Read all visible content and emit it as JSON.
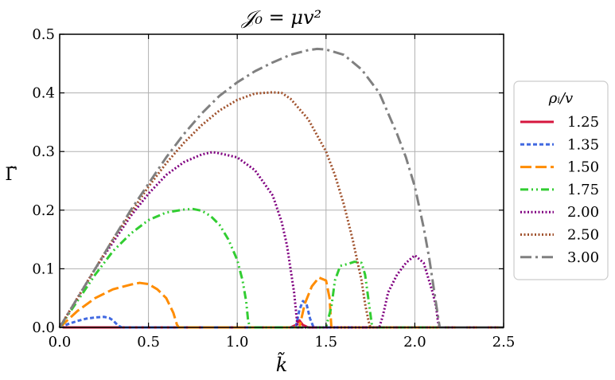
{
  "chart_data": {
    "type": "line",
    "title": "𝒥₀ = μv²",
    "xlabel": "k̃",
    "ylabel": "Γ̃",
    "xlim": [
      0,
      2.5
    ],
    "ylim": [
      0,
      0.5
    ],
    "xticks": [
      "0.0",
      "0.5",
      "1.0",
      "1.5",
      "2.0",
      "2.5"
    ],
    "yticks": [
      "0.0",
      "0.1",
      "0.2",
      "0.3",
      "0.4",
      "0.5"
    ],
    "grid": true,
    "legend_title": "ρᵢ/v",
    "legend_position": "right",
    "series": [
      {
        "name": "1.25",
        "color": "#d6163e",
        "dash": "solid",
        "x": [
          0,
          0.01,
          0.02,
          0.5,
          1.0,
          1.3,
          1.33,
          1.35,
          1.37,
          1.4,
          1.5,
          2.0,
          2.5
        ],
        "y": [
          0,
          0.006,
          0.0,
          0.0,
          0.0,
          0.0,
          0.004,
          0.012,
          0.004,
          0.0,
          0.0,
          0.0,
          0.0
        ]
      },
      {
        "name": "1.35",
        "color": "#4169e1",
        "dash": "dashed",
        "x": [
          0,
          0.05,
          0.1,
          0.15,
          0.2,
          0.25,
          0.28,
          0.3,
          0.33,
          0.35,
          0.5,
          1.0,
          1.33,
          1.35,
          1.37,
          1.39,
          1.41,
          1.43,
          1.5,
          2.0,
          2.5
        ],
        "y": [
          0,
          0.006,
          0.011,
          0.015,
          0.017,
          0.018,
          0.016,
          0.012,
          0.003,
          0.0,
          0.0,
          0.0,
          0.0,
          0.03,
          0.045,
          0.04,
          0.015,
          0.0,
          0.0,
          0.0,
          0.0
        ]
      },
      {
        "name": "1.50",
        "color": "#ff8c00",
        "dash": "longdash",
        "x": [
          0,
          0.1,
          0.2,
          0.3,
          0.4,
          0.45,
          0.5,
          0.55,
          0.6,
          0.64,
          0.66,
          0.67,
          1.0,
          1.35,
          1.38,
          1.42,
          1.46,
          1.5,
          1.52,
          1.53,
          2.0,
          2.5
        ],
        "y": [
          0,
          0.028,
          0.05,
          0.065,
          0.073,
          0.076,
          0.074,
          0.065,
          0.05,
          0.025,
          0.005,
          0.0,
          0.0,
          0.0,
          0.04,
          0.07,
          0.085,
          0.08,
          0.05,
          0.0,
          0.0,
          0.0
        ]
      },
      {
        "name": "1.75",
        "color": "#32cd32",
        "dash": "dashdotdot",
        "x": [
          0,
          0.1,
          0.2,
          0.3,
          0.4,
          0.5,
          0.6,
          0.7,
          0.75,
          0.8,
          0.85,
          0.9,
          0.95,
          1.0,
          1.03,
          1.05,
          1.06,
          1.07,
          1.5,
          1.53,
          1.55,
          1.58,
          1.62,
          1.66,
          1.7,
          1.72,
          1.74,
          1.76,
          2.5
        ],
        "y": [
          0,
          0.045,
          0.09,
          0.13,
          0.16,
          0.183,
          0.196,
          0.201,
          0.202,
          0.199,
          0.19,
          0.175,
          0.15,
          0.115,
          0.08,
          0.045,
          0.015,
          0.0,
          0.0,
          0.035,
          0.08,
          0.105,
          0.108,
          0.112,
          0.11,
          0.09,
          0.045,
          0.0,
          0.0
        ]
      },
      {
        "name": "2.00",
        "color": "#800080",
        "dash": "dotted",
        "x": [
          0,
          0.1,
          0.2,
          0.3,
          0.4,
          0.5,
          0.6,
          0.7,
          0.8,
          0.86,
          0.9,
          1.0,
          1.1,
          1.2,
          1.25,
          1.28,
          1.3,
          1.32,
          1.33,
          1.34,
          1.8,
          1.82,
          1.85,
          1.9,
          1.95,
          2.0,
          2.05,
          2.08,
          2.1,
          2.12,
          2.13,
          2.14,
          2.5
        ],
        "y": [
          0,
          0.05,
          0.1,
          0.145,
          0.19,
          0.228,
          0.26,
          0.282,
          0.295,
          0.299,
          0.297,
          0.29,
          0.268,
          0.225,
          0.18,
          0.14,
          0.1,
          0.06,
          0.03,
          0.0,
          0.0,
          0.02,
          0.06,
          0.09,
          0.11,
          0.123,
          0.11,
          0.08,
          0.06,
          0.035,
          0.01,
          0.0,
          0.0
        ]
      },
      {
        "name": "2.50",
        "color": "#a0522d",
        "dash": "dotted",
        "x": [
          0,
          0.1,
          0.2,
          0.3,
          0.4,
          0.5,
          0.6,
          0.7,
          0.8,
          0.9,
          1.0,
          1.1,
          1.2,
          1.25,
          1.3,
          1.4,
          1.5,
          1.55,
          1.6,
          1.65,
          1.7,
          1.72,
          1.74,
          1.75,
          2.5
        ],
        "y": [
          0,
          0.05,
          0.1,
          0.15,
          0.195,
          0.24,
          0.28,
          0.315,
          0.345,
          0.37,
          0.388,
          0.399,
          0.401,
          0.4,
          0.39,
          0.355,
          0.3,
          0.26,
          0.21,
          0.15,
          0.08,
          0.04,
          0.01,
          0.0,
          0.0
        ]
      },
      {
        "name": "3.00",
        "color": "#808080",
        "dash": "dashdot",
        "x": [
          0,
          0.1,
          0.2,
          0.3,
          0.4,
          0.5,
          0.6,
          0.7,
          0.8,
          0.9,
          1.0,
          1.1,
          1.2,
          1.3,
          1.4,
          1.45,
          1.5,
          1.6,
          1.7,
          1.8,
          1.9,
          1.95,
          2.0,
          2.05,
          2.08,
          2.1,
          2.12,
          2.14,
          2.5
        ],
        "y": [
          0,
          0.05,
          0.1,
          0.15,
          0.2,
          0.245,
          0.29,
          0.33,
          0.365,
          0.395,
          0.418,
          0.437,
          0.452,
          0.465,
          0.473,
          0.475,
          0.474,
          0.465,
          0.44,
          0.4,
          0.33,
          0.29,
          0.24,
          0.17,
          0.12,
          0.08,
          0.04,
          0.0,
          0.0
        ]
      }
    ]
  }
}
